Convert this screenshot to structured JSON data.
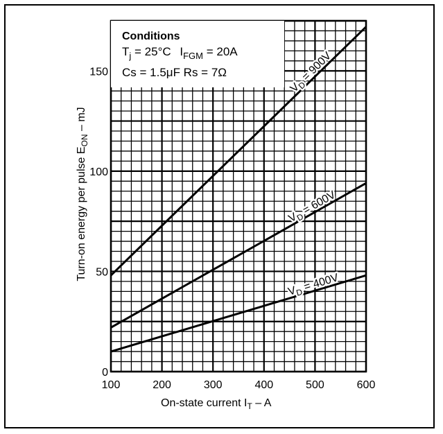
{
  "chart_data": {
    "type": "line",
    "xlabel": "On-state current I",
    "xlabel_sub": "T",
    "xlabel_tail": " – A",
    "ylabel": "Turn-on energy per pulse E",
    "ylabel_sub": "ON",
    "ylabel_tail": " – mJ",
    "xlim": [
      100,
      600
    ],
    "ylim": [
      0,
      175
    ],
    "x_ticks": [
      "100",
      "200",
      "300",
      "400",
      "500",
      "600"
    ],
    "y_ticks": [
      "0",
      "50",
      "100",
      "150"
    ],
    "grid": true,
    "conditions": {
      "heading": "Conditions",
      "line1": {
        "tj_main": "T",
        "tj_sub": "j",
        "tj_rest": " = 25°C",
        "ifgm_main": "I",
        "ifgm_sub": "FGM",
        "ifgm_rest": " = 20A"
      },
      "line2": "Cs = 1.5μF Rs = 7Ω"
    },
    "series": [
      {
        "name": "VD = 900V",
        "label_main": "V",
        "label_sub": "D",
        "label_rest": " = 900V",
        "x": [
          100,
          600
        ],
        "y": [
          48,
          172
        ]
      },
      {
        "name": "VD = 600V",
        "label_main": "V",
        "label_sub": "D",
        "label_rest": " = 600V",
        "x": [
          100,
          600
        ],
        "y": [
          22,
          94
        ]
      },
      {
        "name": "VD = 400V",
        "label_main": "V",
        "label_sub": "D",
        "label_rest": " = 400V",
        "x": [
          100,
          600
        ],
        "y": [
          10,
          48
        ]
      }
    ]
  }
}
